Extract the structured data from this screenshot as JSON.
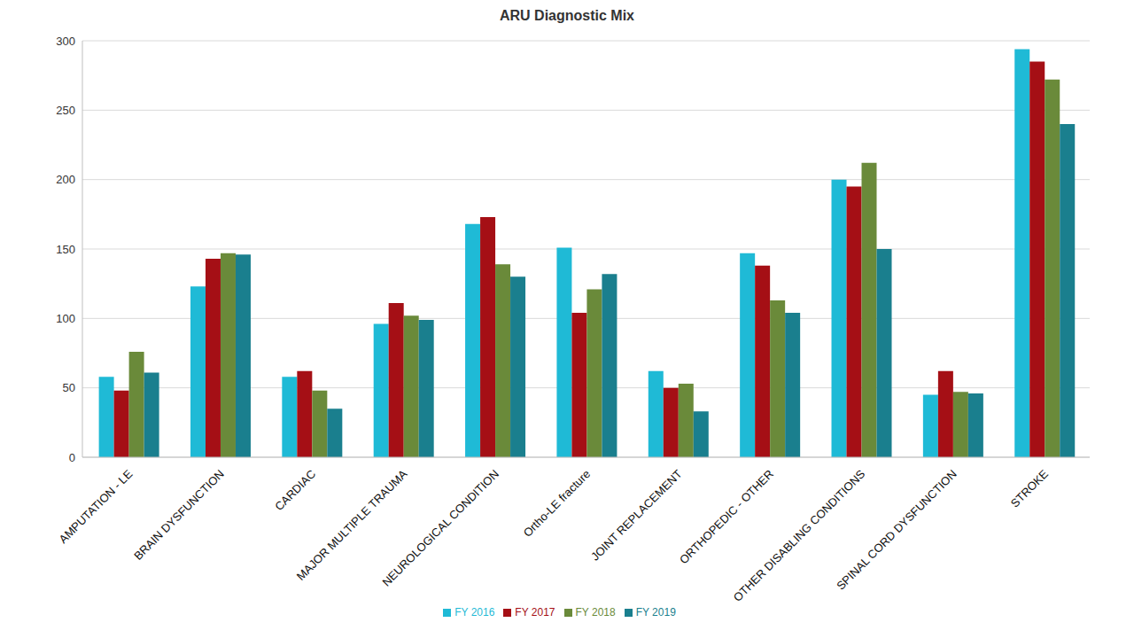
{
  "chart_data": {
    "type": "bar",
    "title": "ARU Diagnostic Mix",
    "categories": [
      "AMPUTATION - LE",
      "BRAIN DYSFUNCTION",
      "CARDIAC",
      "MAJOR MULTIPLE TRAUMA",
      "NEUROLOGICAL CONDITION",
      "Ortho-LE fracture",
      "JOINT REPLACEMENT",
      "ORTHOPEDIC - OTHER",
      "OTHER DISABLING CONDITIONS",
      "SPINAL CORD DYSFUNCTION",
      "STROKE"
    ],
    "series": [
      {
        "name": "FY 2016",
        "color": "#1fbad6",
        "values": [
          58,
          123,
          58,
          96,
          168,
          151,
          62,
          147,
          200,
          45,
          294
        ]
      },
      {
        "name": "FY 2017",
        "color": "#a50f15",
        "values": [
          48,
          143,
          62,
          111,
          173,
          104,
          50,
          138,
          195,
          62,
          285
        ]
      },
      {
        "name": "FY 2018",
        "color": "#6a8a3a",
        "values": [
          76,
          147,
          48,
          102,
          139,
          121,
          53,
          113,
          212,
          47,
          272
        ]
      },
      {
        "name": "FY 2019",
        "color": "#1a7f8e",
        "values": [
          61,
          146,
          35,
          99,
          130,
          132,
          33,
          104,
          150,
          46,
          240
        ]
      }
    ],
    "ylim": [
      0,
      300
    ],
    "yticks": [
      0,
      50,
      100,
      150,
      200,
      250,
      300
    ],
    "grid": true,
    "legend": "bottom"
  }
}
